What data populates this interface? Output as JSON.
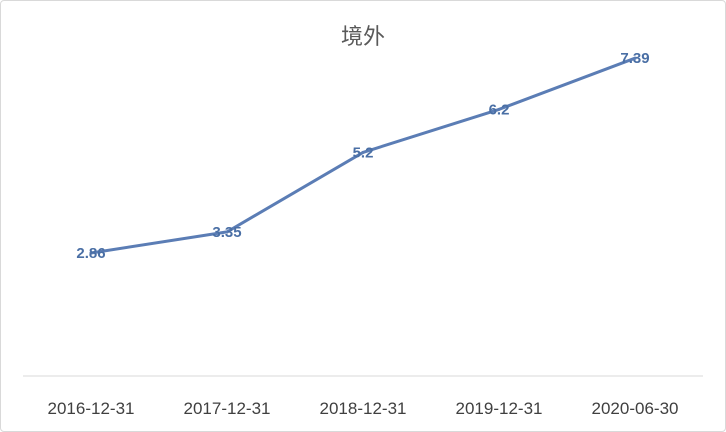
{
  "chart_data": {
    "type": "line",
    "title": "境外",
    "categories": [
      "2016-12-31",
      "2017-12-31",
      "2018-12-31",
      "2019-12-31",
      "2020-06-30"
    ],
    "series": [
      {
        "values": [
          2.86,
          3.35,
          5.2,
          6.2,
          7.39
        ],
        "color": "#5b7db5"
      }
    ],
    "data_labels": [
      "2.86",
      "3.35",
      "5.2",
      "6.2",
      "7.39"
    ],
    "ylim": [
      0,
      8
    ],
    "grid": false,
    "legend": "none",
    "axis_color": "#d9d9d9",
    "label_color": "#4a6fa5"
  }
}
